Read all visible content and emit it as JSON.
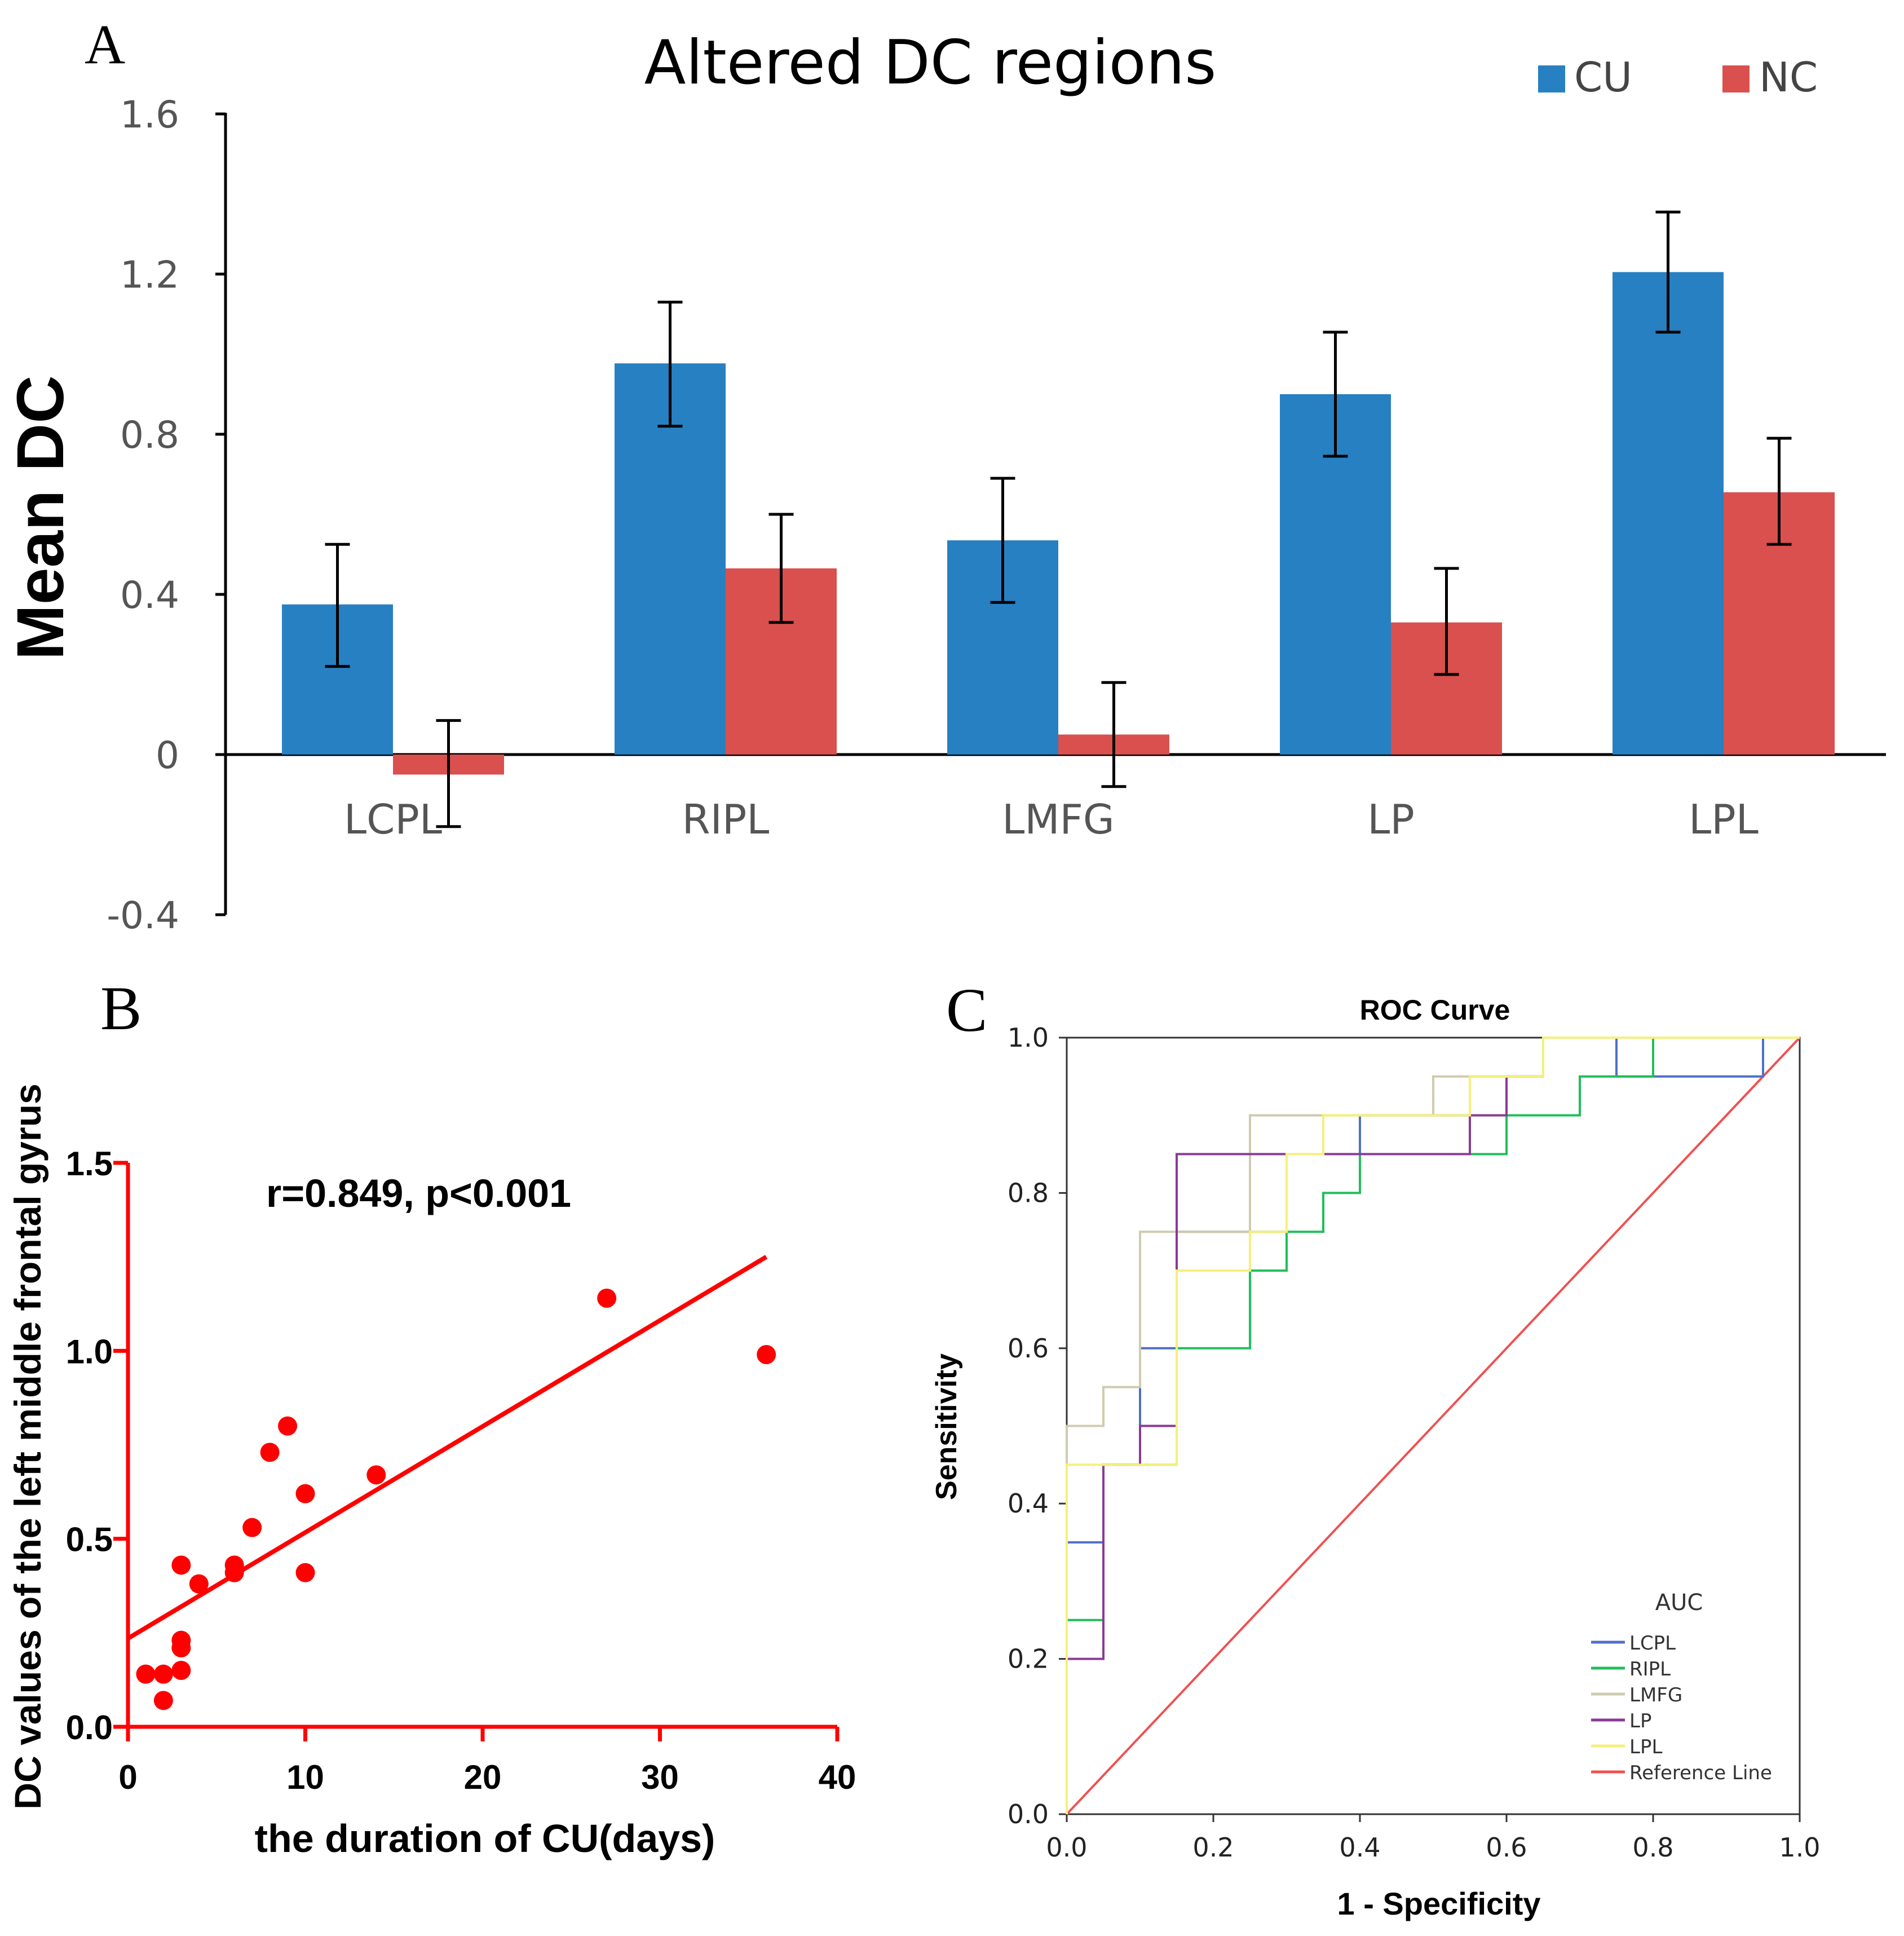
{
  "colors": {
    "cu": "#2780c2",
    "nc": "#d9504f",
    "axis": "#000000",
    "tick_text_a": "#555555",
    "scatter": "#ff0000",
    "roc_lcpl": "#4f70c7",
    "roc_ripl": "#1fbf5a",
    "roc_lmfg": "#cfcbb0",
    "roc_lp": "#8a3a96",
    "roc_lpl": "#f5f07a",
    "roc_reference": "#f05050"
  },
  "chart_data": [
    {
      "type": "bar",
      "panel_label": "A",
      "title": "Altered DC regions",
      "xlabel": "",
      "ylabel": "Mean DC",
      "ylim": [
        -0.4,
        1.6
      ],
      "yticks": [
        -0.4,
        0,
        0.4,
        0.8,
        1.2,
        1.6
      ],
      "ytick_labels": [
        "-0.4",
        "0",
        "0.4",
        "0.8",
        "1.2",
        "1.6"
      ],
      "categories": [
        "LCPL",
        "RIPL",
        "LMFG",
        "LP",
        "LPL"
      ],
      "legend": {
        "placement": "top-right",
        "entries": [
          "CU",
          "NC"
        ]
      },
      "series": [
        {
          "name": "CU",
          "values": [
            0.375,
            0.977,
            0.535,
            0.9,
            1.205
          ],
          "err_low": [
            0.22,
            0.82,
            0.38,
            0.745,
            1.055
          ],
          "err_high": [
            0.525,
            1.13,
            0.69,
            1.055,
            1.355
          ]
        },
        {
          "name": "NC",
          "values": [
            -0.05,
            0.465,
            0.05,
            0.33,
            0.655
          ],
          "err_low": [
            -0.18,
            0.33,
            -0.08,
            0.2,
            0.525
          ],
          "err_high": [
            0.085,
            0.6,
            0.18,
            0.465,
            0.79
          ]
        }
      ]
    },
    {
      "type": "scatter",
      "panel_label": "B",
      "title": "",
      "annotation": "r=0.849, p<0.001",
      "xlabel": "the duration of CU(days)",
      "ylabel": "DC values of the left middle frontal gyrus",
      "xlim": [
        0,
        40
      ],
      "ylim": [
        0,
        1.5
      ],
      "xticks": [
        0,
        10,
        20,
        30,
        40
      ],
      "xtick_labels": [
        "0",
        "10",
        "20",
        "30",
        "40"
      ],
      "yticks": [
        0,
        0.5,
        1.0,
        1.5
      ],
      "ytick_labels": [
        "0.0",
        "0.5",
        "1.0",
        "1.5"
      ],
      "points": [
        {
          "x": 1,
          "y": 0.14
        },
        {
          "x": 2,
          "y": 0.14
        },
        {
          "x": 2,
          "y": 0.07
        },
        {
          "x": 3,
          "y": 0.15
        },
        {
          "x": 3,
          "y": 0.21
        },
        {
          "x": 3,
          "y": 0.23
        },
        {
          "x": 3,
          "y": 0.43
        },
        {
          "x": 4,
          "y": 0.38
        },
        {
          "x": 6,
          "y": 0.41
        },
        {
          "x": 6,
          "y": 0.43
        },
        {
          "x": 7,
          "y": 0.53
        },
        {
          "x": 8,
          "y": 0.73
        },
        {
          "x": 9,
          "y": 0.8
        },
        {
          "x": 10,
          "y": 0.62
        },
        {
          "x": 10,
          "y": 0.41
        },
        {
          "x": 14,
          "y": 0.67
        },
        {
          "x": 27,
          "y": 1.14
        },
        {
          "x": 36,
          "y": 0.99
        }
      ],
      "fit_line": {
        "x": [
          0,
          36
        ],
        "y": [
          0.235,
          1.25
        ]
      }
    },
    {
      "type": "line",
      "panel_label": "C",
      "title": "ROC Curve",
      "xlabel": "1 - Specificity",
      "ylabel": "Sensitivity",
      "xlim": [
        0,
        1
      ],
      "ylim": [
        0,
        1
      ],
      "xticks": [
        0,
        0.2,
        0.4,
        0.6,
        0.8,
        1.0
      ],
      "xtick_labels": [
        "0.0",
        "0.2",
        "0.4",
        "0.6",
        "0.8",
        "1.0"
      ],
      "yticks": [
        0,
        0.2,
        0.4,
        0.6,
        0.8,
        1.0
      ],
      "ytick_labels": [
        "0.0",
        "0.2",
        "0.4",
        "0.6",
        "0.8",
        "1.0"
      ],
      "legend": {
        "placement": "bottom-right",
        "title": "AUC"
      },
      "series": [
        {
          "name": "LCPL",
          "color_key": "roc_lcpl",
          "x": [
            0,
            0,
            0.05,
            0.05,
            0.1,
            0.1,
            0.15,
            0.15,
            0.3,
            0.3,
            0.4,
            0.4,
            0.55,
            0.55,
            0.65,
            0.65,
            0.75,
            0.75,
            0.95,
            0.95,
            1.0
          ],
          "y": [
            0,
            0.35,
            0.35,
            0.45,
            0.45,
            0.6,
            0.6,
            0.75,
            0.75,
            0.85,
            0.85,
            0.9,
            0.9,
            0.95,
            0.95,
            1.0,
            1.0,
            0.95,
            0.95,
            1.0,
            1.0
          ]
        },
        {
          "name": "RIPL",
          "color_key": "roc_ripl",
          "x": [
            0,
            0,
            0.05,
            0.05,
            0.15,
            0.15,
            0.25,
            0.25,
            0.3,
            0.3,
            0.35,
            0.35,
            0.4,
            0.4,
            0.6,
            0.6,
            0.7,
            0.7,
            0.8,
            0.8,
            1.0
          ],
          "y": [
            0,
            0.25,
            0.25,
            0.45,
            0.45,
            0.6,
            0.6,
            0.7,
            0.7,
            0.75,
            0.75,
            0.8,
            0.8,
            0.85,
            0.85,
            0.9,
            0.9,
            0.95,
            0.95,
            1.0,
            1.0
          ]
        },
        {
          "name": "LMFG",
          "color_key": "roc_lmfg",
          "x": [
            0,
            0,
            0.05,
            0.05,
            0.1,
            0.1,
            0.25,
            0.25,
            0.5,
            0.5,
            0.65,
            0.65,
            1.0
          ],
          "y": [
            0,
            0.5,
            0.5,
            0.55,
            0.55,
            0.75,
            0.75,
            0.9,
            0.9,
            0.95,
            0.95,
            1.0,
            1.0
          ]
        },
        {
          "name": "LP",
          "color_key": "roc_lp",
          "x": [
            0,
            0,
            0.05,
            0.05,
            0.1,
            0.1,
            0.15,
            0.15,
            0.55,
            0.55,
            0.6,
            0.6,
            0.65,
            0.65,
            1.0
          ],
          "y": [
            0,
            0.2,
            0.2,
            0.45,
            0.45,
            0.5,
            0.5,
            0.85,
            0.85,
            0.9,
            0.9,
            0.95,
            0.95,
            1.0,
            1.0
          ]
        },
        {
          "name": "LPL",
          "color_key": "roc_lpl",
          "x": [
            0,
            0,
            0.15,
            0.15,
            0.25,
            0.25,
            0.3,
            0.3,
            0.35,
            0.35,
            0.55,
            0.55,
            0.65,
            0.65,
            1.0
          ],
          "y": [
            0,
            0.45,
            0.45,
            0.7,
            0.7,
            0.75,
            0.75,
            0.85,
            0.85,
            0.9,
            0.9,
            0.95,
            0.95,
            1.0,
            1.0
          ]
        },
        {
          "name": "Reference Line",
          "color_key": "roc_reference",
          "x": [
            0,
            1
          ],
          "y": [
            0,
            1
          ]
        }
      ]
    }
  ]
}
